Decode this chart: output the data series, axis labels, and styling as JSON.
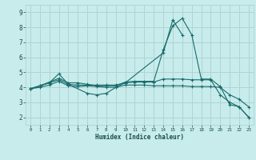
{
  "xlabel": "Humidex (Indice chaleur)",
  "background_color": "#c8ecec",
  "grid_color": "#b0d4d4",
  "line_color": "#1a6b6b",
  "xlim": [
    -0.5,
    23.5
  ],
  "ylim": [
    1.5,
    9.5
  ],
  "yticks": [
    2,
    3,
    4,
    5,
    6,
    7,
    8,
    9
  ],
  "xticks": [
    0,
    1,
    2,
    3,
    4,
    5,
    6,
    7,
    8,
    9,
    10,
    11,
    12,
    13,
    14,
    15,
    16,
    17,
    18,
    19,
    20,
    21,
    22,
    23
  ],
  "series": [
    {
      "x": [
        0,
        1,
        2,
        3,
        4,
        6,
        7,
        8,
        9,
        10,
        14,
        15,
        16
      ],
      "y": [
        3.9,
        4.1,
        4.3,
        4.9,
        4.2,
        3.6,
        3.5,
        3.6,
        4.0,
        4.3,
        6.3,
        8.5,
        7.5
      ]
    },
    {
      "x": [
        0,
        1,
        2,
        3,
        4,
        5,
        6,
        7,
        8,
        9,
        10,
        11,
        12,
        13,
        14,
        15,
        16,
        17,
        18,
        19,
        20,
        21,
        22,
        23
      ],
      "y": [
        3.9,
        4.1,
        4.35,
        4.6,
        4.3,
        4.3,
        4.2,
        4.1,
        4.1,
        4.1,
        4.35,
        4.4,
        4.4,
        4.4,
        6.5,
        8.1,
        8.6,
        7.5,
        4.55,
        4.55,
        4.05,
        2.85,
        2.7,
        2.0
      ]
    },
    {
      "x": [
        0,
        1,
        2,
        3,
        4,
        5,
        6,
        7,
        8,
        9,
        10,
        11,
        12,
        13,
        14,
        15,
        16,
        17,
        18,
        19,
        20,
        21,
        22,
        23
      ],
      "y": [
        3.9,
        4.0,
        4.15,
        4.4,
        4.1,
        4.05,
        4.1,
        4.05,
        4.0,
        4.0,
        4.15,
        4.15,
        4.15,
        4.1,
        4.1,
        4.1,
        4.1,
        4.05,
        4.05,
        4.05,
        4.0,
        3.5,
        3.2,
        2.7
      ]
    },
    {
      "x": [
        0,
        1,
        2,
        3,
        4,
        5,
        6,
        7,
        8,
        9,
        10,
        11,
        12,
        13,
        14,
        15,
        16,
        17,
        18,
        19,
        20,
        21,
        22,
        23
      ],
      "y": [
        3.9,
        4.1,
        4.3,
        4.5,
        4.2,
        4.15,
        4.15,
        4.15,
        4.15,
        4.15,
        4.3,
        4.35,
        4.35,
        4.35,
        4.55,
        4.55,
        4.55,
        4.5,
        4.5,
        4.5,
        3.5,
        3.0,
        2.7,
        2.0
      ]
    }
  ]
}
